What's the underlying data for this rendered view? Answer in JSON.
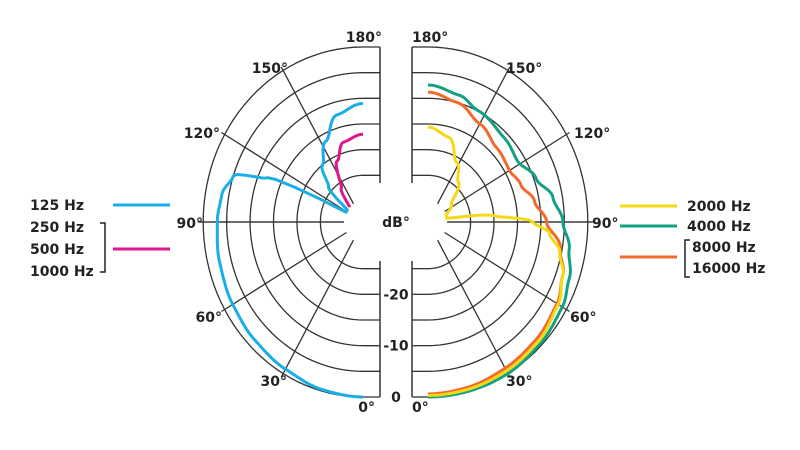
{
  "chart_data": {
    "type": "polar",
    "radial_axis": {
      "unit_label": "dB°",
      "tick_labels": [
        "0",
        "-10",
        "-20"
      ],
      "range": [
        -30,
        0
      ],
      "ring_step": 5
    },
    "angle_axis": {
      "tick_labels": [
        "0°",
        "30°",
        "60°",
        "90°",
        "120°",
        "150°",
        "180°"
      ],
      "range_deg": [
        0,
        180
      ],
      "step_deg": 30
    },
    "grid": true,
    "halves": [
      {
        "side": "left",
        "series": [
          {
            "name": "250 Hz / 500 Hz / 1000 Hz",
            "color": "#e2168c",
            "points": [
              [
                135,
                -30
              ],
              [
                145,
                -26
              ],
              [
                155,
                -21
              ],
              [
                165,
                -18
              ],
              [
                180,
                -17
              ]
            ]
          },
          {
            "name": "125 Hz",
            "color": "#19aee6",
            "points": [
              [
                0,
                0
              ],
              [
                15,
                -0.3
              ],
              [
                30,
                -1
              ],
              [
                45,
                -1.5
              ],
              [
                60,
                -2
              ],
              [
                75,
                -2.5
              ],
              [
                90,
                -3
              ],
              [
                100,
                -3.5
              ],
              [
                108,
                -5
              ],
              [
                113,
                -12
              ],
              [
                118,
                -30
              ],
              [
                125,
                -30
              ],
              [
                133,
                -24
              ],
              [
                142,
                -20
              ],
              [
                153,
                -16.5
              ],
              [
                165,
                -12.5
              ],
              [
                180,
                -11
              ]
            ]
          }
        ]
      },
      {
        "side": "right",
        "series": [
          {
            "name": "8000 Hz / 16000 Hz",
            "color": "#f26a2c",
            "points": [
              [
                0,
                -0.6
              ],
              [
                15,
                -0.8
              ],
              [
                30,
                -1.2
              ],
              [
                45,
                -1.6
              ],
              [
                60,
                -2.3
              ],
              [
                70,
                -3.5
              ],
              [
                80,
                -5.5
              ],
              [
                90,
                -8.8
              ],
              [
                100,
                -11
              ],
              [
                110,
                -13
              ],
              [
                120,
                -14
              ],
              [
                135,
                -13.5
              ],
              [
                150,
                -12
              ],
              [
                165,
                -10
              ],
              [
                180,
                -8.8
              ]
            ]
          },
          {
            "name": "4000 Hz",
            "color": "#14a083",
            "points": [
              [
                0,
                0
              ],
              [
                15,
                0
              ],
              [
                30,
                0
              ],
              [
                45,
                -0.4
              ],
              [
                60,
                -1
              ],
              [
                70,
                -2
              ],
              [
                80,
                -3.5
              ],
              [
                90,
                -5.3
              ],
              [
                100,
                -7
              ],
              [
                110,
                -9.5
              ],
              [
                122,
                -11.6
              ],
              [
                135,
                -11
              ],
              [
                154,
                -9.9
              ],
              [
                165,
                -8.5
              ],
              [
                180,
                -7.4
              ]
            ]
          },
          {
            "name": "2000 Hz",
            "color": "#f5d915",
            "points": [
              [
                0,
                -0.3
              ],
              [
                15,
                -0.4
              ],
              [
                30,
                -0.6
              ],
              [
                45,
                -1
              ],
              [
                60,
                -2
              ],
              [
                70,
                -3.5
              ],
              [
                78,
                -5.3
              ],
              [
                85,
                -8
              ],
              [
                90,
                -11.7
              ],
              [
                95,
                -20
              ],
              [
                100,
                -30
              ],
              [
                108,
                -30
              ],
              [
                125,
                -28
              ],
              [
                140,
                -24
              ],
              [
                152,
                -21
              ],
              [
                165,
                -17
              ],
              [
                180,
                -15.6
              ]
            ]
          }
        ]
      }
    ]
  },
  "legend_left": {
    "items": [
      {
        "label": "125 Hz",
        "color": "#19aee6"
      },
      {
        "labels": [
          "250 Hz",
          "500 Hz",
          "1000 Hz"
        ],
        "color": "#e2168c"
      }
    ]
  },
  "legend_right": {
    "items": [
      {
        "label": "2000 Hz",
        "color": "#f5d915"
      },
      {
        "label": "4000 Hz",
        "color": "#14a083"
      },
      {
        "labels": [
          "8000 Hz",
          "16000 Hz"
        ],
        "color": "#f26a2c"
      }
    ]
  }
}
